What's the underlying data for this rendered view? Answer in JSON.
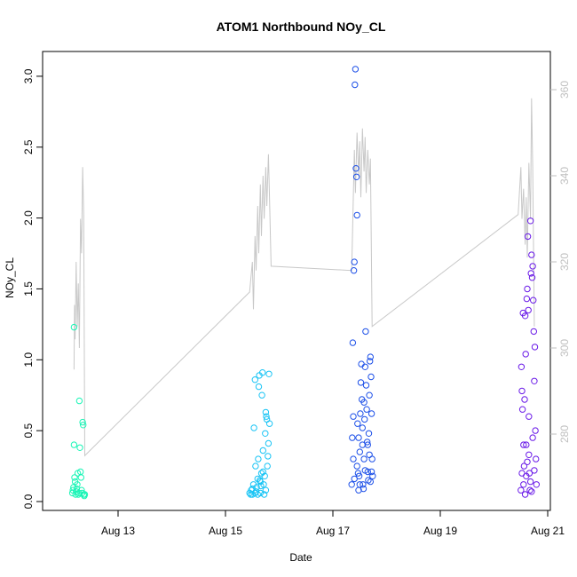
{
  "chart_data": {
    "type": "scatter",
    "title": "ATOM1 Northbound NOy_CL",
    "xlabel": "Date",
    "ylabel": "NOy_CL",
    "x_axis": {
      "ticks": [
        {
          "label": "Aug 13",
          "day": 13
        },
        {
          "label": "Aug 15",
          "day": 15
        },
        {
          "label": "Aug 17",
          "day": 17
        },
        {
          "label": "Aug 19",
          "day": 19
        },
        {
          "label": "Aug 21",
          "day": 21
        }
      ],
      "xlim_days": [
        11.6,
        21.2
      ]
    },
    "y_left": {
      "ylim": [
        0,
        3.0
      ],
      "ticks": [
        "0.0",
        "0.5",
        "1.0",
        "1.5",
        "2.0",
        "2.5",
        "3.0"
      ]
    },
    "y_right": {
      "ylim": [
        270,
        360
      ],
      "ticks": [
        "280",
        "300",
        "320",
        "340",
        "360"
      ],
      "tick_color": "#bfbfbf",
      "line_color": "#c8c8c8"
    },
    "colors": {
      "flight1": "#19f5b6",
      "flight2": "#19c4f5",
      "flight3": "#1d50e8",
      "flight4": "#6a1ae8"
    },
    "series": [
      {
        "flight": 1,
        "points": [
          [
            12.15,
            0.06
          ],
          [
            12.16,
            0.08
          ],
          [
            12.17,
            0.1
          ],
          [
            12.18,
            1.23
          ],
          [
            12.18,
            0.4
          ],
          [
            12.19,
            0.17
          ],
          [
            12.2,
            0.14
          ],
          [
            12.21,
            0.05
          ],
          [
            12.22,
            0.07
          ],
          [
            12.23,
            0.09
          ],
          [
            12.24,
            0.12
          ],
          [
            12.25,
            0.2
          ],
          [
            12.26,
            0.05
          ],
          [
            12.27,
            0.06
          ],
          [
            12.28,
            0.71
          ],
          [
            12.29,
            0.38
          ],
          [
            12.3,
            0.21
          ],
          [
            12.31,
            0.17
          ],
          [
            12.32,
            0.08
          ],
          [
            12.33,
            0.06
          ],
          [
            12.34,
            0.56
          ],
          [
            12.35,
            0.54
          ],
          [
            12.36,
            0.05
          ],
          [
            12.37,
            0.04
          ],
          [
            12.38,
            0.05
          ]
        ]
      },
      {
        "flight": 2,
        "points": [
          [
            15.45,
            0.06
          ],
          [
            15.47,
            0.05
          ],
          [
            15.48,
            0.08
          ],
          [
            15.5,
            0.05
          ],
          [
            15.52,
            0.12
          ],
          [
            15.53,
            0.52
          ],
          [
            15.55,
            0.86
          ],
          [
            15.56,
            0.25
          ],
          [
            15.57,
            0.07
          ],
          [
            15.58,
            0.1
          ],
          [
            15.6,
            0.05
          ],
          [
            15.61,
            0.3
          ],
          [
            15.62,
            0.81
          ],
          [
            15.63,
            0.89
          ],
          [
            15.64,
            0.15
          ],
          [
            15.65,
            0.06
          ],
          [
            15.66,
            0.11
          ],
          [
            15.67,
            0.2
          ],
          [
            15.68,
            0.75
          ],
          [
            15.69,
            0.91
          ],
          [
            15.7,
            0.36
          ],
          [
            15.71,
            0.12
          ],
          [
            15.72,
            0.05
          ],
          [
            15.73,
            0.18
          ],
          [
            15.74,
            0.48
          ],
          [
            15.75,
            0.63
          ],
          [
            15.76,
            0.6
          ],
          [
            15.77,
            0.58
          ],
          [
            15.78,
            0.25
          ],
          [
            15.79,
            0.32
          ],
          [
            15.8,
            0.41
          ],
          [
            15.81,
            0.9
          ],
          [
            15.82,
            0.55
          ],
          [
            15.6,
            0.16
          ],
          [
            15.7,
            0.21
          ],
          [
            15.75,
            0.08
          ],
          [
            15.5,
            0.09
          ],
          [
            15.55,
            0.06
          ],
          [
            15.65,
            0.14
          ]
        ]
      },
      {
        "flight": 3,
        "points": [
          [
            17.35,
            0.12
          ],
          [
            17.36,
            0.45
          ],
          [
            17.37,
            1.12
          ],
          [
            17.38,
            0.3
          ],
          [
            17.39,
            1.63
          ],
          [
            17.4,
            1.69
          ],
          [
            17.41,
            2.94
          ],
          [
            17.42,
            3.05
          ],
          [
            17.43,
            2.35
          ],
          [
            17.44,
            2.29
          ],
          [
            17.45,
            2.02
          ],
          [
            17.46,
            0.55
          ],
          [
            17.47,
            0.2
          ],
          [
            17.48,
            0.08
          ],
          [
            17.49,
            0.18
          ],
          [
            17.5,
            0.35
          ],
          [
            17.51,
            0.62
          ],
          [
            17.52,
            0.84
          ],
          [
            17.53,
            0.97
          ],
          [
            17.54,
            0.72
          ],
          [
            17.55,
            0.4
          ],
          [
            17.56,
            0.12
          ],
          [
            17.57,
            0.09
          ],
          [
            17.58,
            0.3
          ],
          [
            17.59,
            0.58
          ],
          [
            17.6,
            0.95
          ],
          [
            17.61,
            1.2
          ],
          [
            17.62,
            0.82
          ],
          [
            17.63,
            0.65
          ],
          [
            17.64,
            0.42
          ],
          [
            17.65,
            0.21
          ],
          [
            17.66,
            0.15
          ],
          [
            17.67,
            0.48
          ],
          [
            17.68,
            0.75
          ],
          [
            17.69,
            0.99
          ],
          [
            17.7,
            1.02
          ],
          [
            17.71,
            0.88
          ],
          [
            17.72,
            0.62
          ],
          [
            17.73,
            0.3
          ],
          [
            17.74,
            0.18
          ],
          [
            17.4,
            0.16
          ],
          [
            17.45,
            0.25
          ],
          [
            17.5,
            0.12
          ],
          [
            17.55,
            0.52
          ],
          [
            17.6,
            0.22
          ],
          [
            17.65,
            0.4
          ],
          [
            17.7,
            0.14
          ],
          [
            17.38,
            0.6
          ],
          [
            17.48,
            0.45
          ],
          [
            17.58,
            0.7
          ],
          [
            17.68,
            0.33
          ],
          [
            17.72,
            0.21
          ]
        ]
      },
      {
        "flight": 4,
        "points": [
          [
            20.5,
            0.08
          ],
          [
            20.51,
            0.95
          ],
          [
            20.52,
            0.78
          ],
          [
            20.53,
            0.65
          ],
          [
            20.54,
            1.33
          ],
          [
            20.55,
            0.4
          ],
          [
            20.56,
            0.25
          ],
          [
            20.57,
            0.72
          ],
          [
            20.58,
            1.31
          ],
          [
            20.59,
            1.04
          ],
          [
            20.6,
            0.4
          ],
          [
            20.61,
            1.43
          ],
          [
            20.62,
            1.5
          ],
          [
            20.63,
            1.87
          ],
          [
            20.64,
            1.35
          ],
          [
            20.65,
            0.6
          ],
          [
            20.66,
            0.2
          ],
          [
            20.67,
            0.08
          ],
          [
            20.68,
            1.98
          ],
          [
            20.69,
            1.61
          ],
          [
            20.7,
            1.74
          ],
          [
            20.71,
            1.58
          ],
          [
            20.72,
            1.66
          ],
          [
            20.73,
            1.42
          ],
          [
            20.74,
            1.2
          ],
          [
            20.75,
            0.85
          ],
          [
            20.76,
            1.09
          ],
          [
            20.77,
            0.5
          ],
          [
            20.78,
            0.3
          ],
          [
            20.79,
            0.12
          ],
          [
            20.55,
            0.12
          ],
          [
            20.6,
            0.18
          ],
          [
            20.65,
            0.33
          ],
          [
            20.7,
            0.07
          ],
          [
            20.75,
            0.22
          ],
          [
            20.58,
            0.05
          ],
          [
            20.68,
            0.14
          ],
          [
            20.72,
            0.45
          ],
          [
            20.62,
            0.28
          ],
          [
            20.52,
            0.2
          ]
        ]
      }
    ],
    "right_axis_line": [
      [
        12.18,
        295
      ],
      [
        12.19,
        310
      ],
      [
        12.2,
        302
      ],
      [
        12.22,
        320
      ],
      [
        12.24,
        305
      ],
      [
        12.26,
        315
      ],
      [
        12.28,
        300
      ],
      [
        12.3,
        330
      ],
      [
        12.32,
        322
      ],
      [
        12.34,
        342
      ],
      [
        12.36,
        331
      ],
      [
        12.38,
        275
      ],
      [
        15.45,
        313
      ],
      [
        15.5,
        320
      ],
      [
        15.52,
        309
      ],
      [
        15.55,
        326
      ],
      [
        15.57,
        318
      ],
      [
        15.6,
        333
      ],
      [
        15.62,
        322
      ],
      [
        15.65,
        338
      ],
      [
        15.67,
        326
      ],
      [
        15.7,
        340
      ],
      [
        15.72,
        330
      ],
      [
        15.75,
        342
      ],
      [
        15.77,
        333
      ],
      [
        15.8,
        345
      ],
      [
        15.82,
        335
      ],
      [
        15.85,
        319
      ],
      [
        17.35,
        318
      ],
      [
        17.4,
        346
      ],
      [
        17.42,
        336
      ],
      [
        17.45,
        350
      ],
      [
        17.48,
        340
      ],
      [
        17.5,
        348
      ],
      [
        17.52,
        335
      ],
      [
        17.55,
        351
      ],
      [
        17.58,
        341
      ],
      [
        17.6,
        349
      ],
      [
        17.62,
        336
      ],
      [
        17.65,
        346
      ],
      [
        17.68,
        338
      ],
      [
        17.7,
        344
      ],
      [
        17.73,
        305
      ],
      [
        20.45,
        331
      ],
      [
        20.5,
        342
      ],
      [
        20.52,
        330
      ],
      [
        20.55,
        337
      ],
      [
        20.58,
        324
      ],
      [
        20.6,
        335
      ],
      [
        20.62,
        321
      ],
      [
        20.65,
        343
      ],
      [
        20.68,
        330
      ],
      [
        20.7,
        358
      ],
      [
        20.72,
        342
      ],
      [
        20.75,
        305
      ]
    ]
  }
}
